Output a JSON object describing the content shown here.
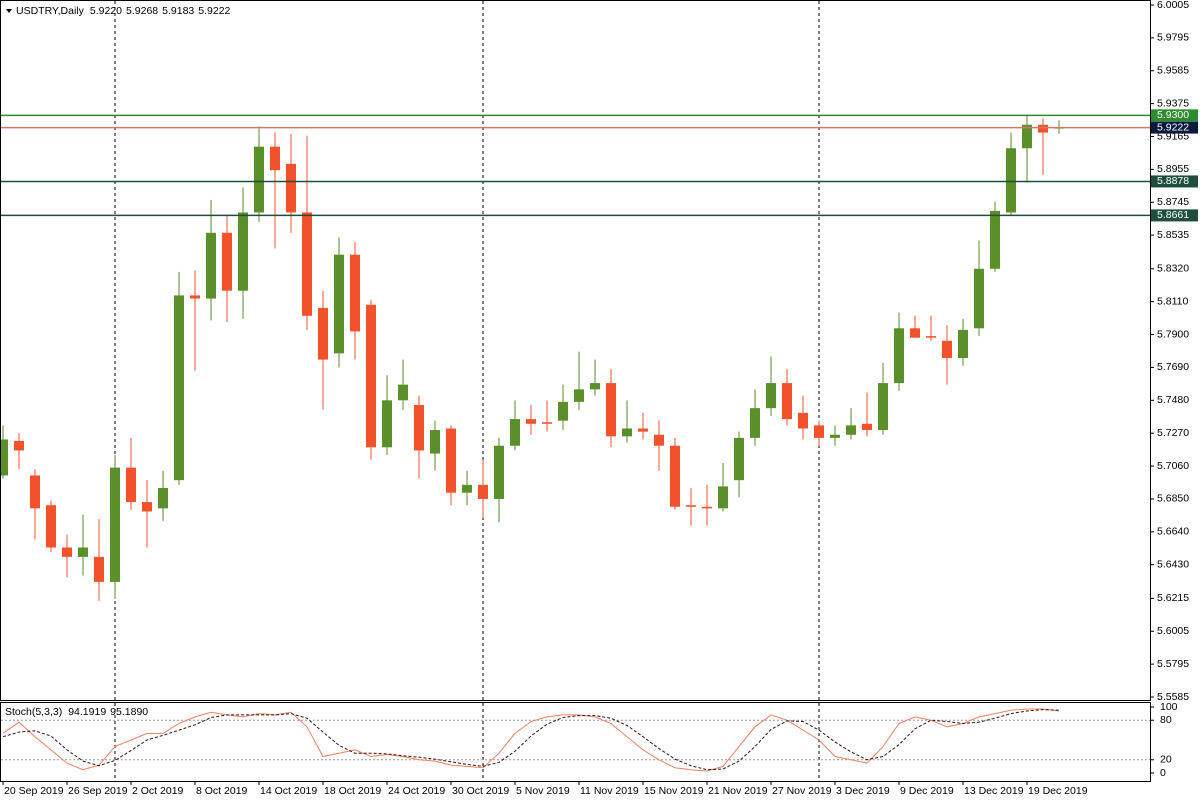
{
  "chart_data": [
    {
      "type": "candlestick",
      "title": "USDTRY,Daily",
      "ohlc_labels": [
        "5.9220",
        "5.9268",
        "5.9183",
        "5.9222"
      ],
      "categories": [
        "20 Sep 2019",
        null,
        null,
        null,
        "26 Sep 2019",
        null,
        null,
        null,
        "2 Oct 2019",
        null,
        null,
        null,
        "8 Oct 2019",
        null,
        null,
        null,
        "14 Oct 2019",
        null,
        null,
        null,
        "18 Oct 2019",
        null,
        null,
        null,
        "24 Oct 2019",
        null,
        null,
        null,
        "30 Oct 2019",
        null,
        null,
        null,
        "5 Nov 2019",
        null,
        null,
        null,
        "11 Nov 2019",
        null,
        null,
        null,
        "15 Nov 2019",
        null,
        null,
        null,
        "21 Nov 2019",
        null,
        null,
        null,
        "27 Nov 2019",
        null,
        null,
        null,
        "3 Dec 2019",
        null,
        null,
        null,
        "9 Dec 2019",
        null,
        null,
        null,
        "13 Dec 2019",
        null,
        null,
        null,
        "19 Dec 2019",
        null,
        null
      ],
      "open": [
        5.7,
        5.722,
        5.7,
        5.681,
        5.654,
        5.648,
        5.648,
        5.632,
        5.705,
        5.683,
        5.679,
        5.697,
        5.815,
        5.813,
        5.855,
        5.818,
        5.868,
        5.91,
        5.899,
        5.868,
        5.807,
        5.778,
        5.841,
        5.809,
        5.718,
        5.748,
        5.745,
        5.714,
        5.73,
        5.689,
        5.694,
        5.685,
        5.719,
        5.736,
        5.734,
        5.735,
        5.747,
        5.755,
        5.759,
        5.725,
        5.73,
        5.726,
        5.719,
        5.681,
        5.68,
        5.679,
        5.697,
        5.724,
        5.743,
        5.759,
        5.74,
        5.732,
        5.724,
        5.726,
        5.733,
        5.729,
        5.759,
        5.794,
        5.789,
        5.786,
        5.775,
        5.794,
        5.832,
        5.868,
        5.909,
        5.924,
        5.922
      ],
      "high": [
        5.732,
        5.727,
        5.704,
        5.684,
        5.662,
        5.675,
        5.672,
        5.713,
        5.724,
        5.697,
        5.703,
        5.83,
        5.831,
        5.876,
        5.866,
        5.884,
        5.923,
        5.919,
        5.918,
        5.917,
        5.818,
        5.852,
        5.849,
        5.812,
        5.764,
        5.774,
        5.751,
        5.735,
        5.732,
        5.703,
        5.71,
        5.724,
        5.748,
        5.745,
        5.748,
        5.758,
        5.779,
        5.774,
        5.768,
        5.748,
        5.74,
        5.735,
        5.724,
        5.692,
        5.694,
        5.708,
        5.728,
        5.755,
        5.776,
        5.768,
        5.751,
        5.735,
        5.732,
        5.743,
        5.753,
        5.772,
        5.804,
        5.802,
        5.802,
        5.796,
        5.8,
        5.85,
        5.875,
        5.919,
        5.93,
        5.928,
        5.9268
      ],
      "low": [
        5.698,
        5.704,
        5.659,
        5.651,
        5.635,
        5.636,
        5.62,
        5.621,
        5.678,
        5.654,
        5.671,
        5.694,
        5.767,
        5.799,
        5.798,
        5.8,
        5.862,
        5.845,
        5.855,
        5.793,
        5.742,
        5.769,
        5.774,
        5.71,
        5.713,
        5.742,
        5.698,
        5.703,
        5.681,
        5.681,
        5.673,
        5.67,
        5.716,
        5.726,
        5.728,
        5.729,
        5.742,
        5.751,
        5.718,
        5.721,
        5.723,
        5.703,
        5.678,
        5.668,
        5.668,
        5.677,
        5.686,
        5.719,
        5.738,
        5.732,
        5.723,
        5.719,
        5.719,
        5.723,
        5.725,
        5.726,
        5.754,
        5.788,
        5.786,
        5.758,
        5.77,
        5.789,
        5.83,
        5.866,
        5.887,
        5.892,
        5.9183
      ],
      "close": [
        5.723,
        5.716,
        5.679,
        5.654,
        5.648,
        5.654,
        5.632,
        5.705,
        5.683,
        5.677,
        5.692,
        5.815,
        5.813,
        5.855,
        5.818,
        5.868,
        5.91,
        5.895,
        5.868,
        5.802,
        5.774,
        5.841,
        5.792,
        5.718,
        5.748,
        5.758,
        5.716,
        5.729,
        5.689,
        5.694,
        5.685,
        5.719,
        5.736,
        5.733,
        5.733,
        5.747,
        5.755,
        5.759,
        5.725,
        5.73,
        5.728,
        5.719,
        5.68,
        5.68,
        5.679,
        5.693,
        5.724,
        5.743,
        5.759,
        5.736,
        5.73,
        5.724,
        5.726,
        5.732,
        5.729,
        5.759,
        5.794,
        5.788,
        5.788,
        5.775,
        5.793,
        5.832,
        5.869,
        5.909,
        5.924,
        5.919,
        5.9222
      ],
      "up_color": "#5a8f2a",
      "down_color": "#f2522b",
      "ylim": [
        5.5585,
        6.0005
      ],
      "yticks": [
        {
          "value": 6.0005,
          "label": "6.0005"
        },
        {
          "value": 5.9795,
          "label": "5.9795"
        },
        {
          "value": 5.9585,
          "label": "5.9585"
        },
        {
          "value": 5.9375,
          "label": "5.9375"
        },
        {
          "value": 5.9165,
          "label": "5.9165"
        },
        {
          "value": 5.8955,
          "label": "5.8955"
        },
        {
          "value": 5.8745,
          "label": "5.8745"
        },
        {
          "value": 5.8535,
          "label": "5.8535"
        },
        {
          "value": 5.832,
          "label": "5.8320"
        },
        {
          "value": 5.811,
          "label": "5.8110"
        },
        {
          "value": 5.79,
          "label": "5.7900"
        },
        {
          "value": 5.769,
          "label": "5.7690"
        },
        {
          "value": 5.748,
          "label": "5.7480"
        },
        {
          "value": 5.727,
          "label": "5.7270"
        },
        {
          "value": 5.706,
          "label": "5.7060"
        },
        {
          "value": 5.685,
          "label": "5.6850"
        },
        {
          "value": 5.664,
          "label": "5.6640"
        },
        {
          "value": 5.643,
          "label": "5.6430"
        },
        {
          "value": 5.6215,
          "label": "5.6215"
        },
        {
          "value": 5.6005,
          "label": "5.6005"
        },
        {
          "value": 5.5795,
          "label": "5.5795"
        },
        {
          "value": 5.5585,
          "label": "5.5585"
        }
      ],
      "levels": [
        {
          "value": 5.93,
          "label": "5.9300",
          "color": "#2e8b2e",
          "box": "#2e8b2e"
        },
        {
          "value": 5.9222,
          "label": "5.9222",
          "color": "#d07a6a",
          "box": "#0b1a3c"
        },
        {
          "value": 5.8878,
          "label": "5.8878",
          "color": "#1f4e3d",
          "box": "#1f4e3d"
        },
        {
          "value": 5.8661,
          "label": "5.8661",
          "color": "#1f4e3d",
          "box": "#1f4e3d"
        }
      ]
    },
    {
      "type": "line",
      "title": "Stoch(5,3,3)",
      "value_labels": [
        "94.1919",
        "95.1890"
      ],
      "series": [
        {
          "color": "#f08060",
          "dash": false,
          "values": [
            60,
            77,
            55,
            35,
            15,
            5,
            12,
            40,
            50,
            60,
            60,
            75,
            85,
            92,
            88,
            85,
            90,
            88,
            92,
            70,
            25,
            30,
            35,
            25,
            28,
            25,
            20,
            18,
            12,
            10,
            8,
            30,
            60,
            78,
            85,
            88,
            88,
            85,
            75,
            55,
            35,
            20,
            8,
            5,
            3,
            10,
            40,
            70,
            88,
            80,
            65,
            50,
            25,
            20,
            15,
            40,
            75,
            85,
            80,
            70,
            75,
            85,
            90,
            95,
            97,
            97,
            94.1919
          ]
        },
        {
          "color": "#3a1010",
          "dash": true,
          "values": [
            55,
            62,
            64,
            56,
            35,
            18,
            11,
            19,
            34,
            50,
            57,
            65,
            73,
            84,
            88,
            88,
            88,
            88,
            90,
            83,
            62,
            42,
            30,
            30,
            29,
            26,
            24,
            21,
            17,
            13,
            10,
            16,
            33,
            56,
            74,
            84,
            87,
            87,
            83,
            72,
            55,
            37,
            21,
            11,
            5,
            6,
            18,
            40,
            66,
            79,
            78,
            65,
            47,
            32,
            20,
            25,
            43,
            67,
            80,
            78,
            75,
            77,
            83,
            90,
            94,
            96,
            95.189
          ]
        }
      ],
      "ylim": [
        0,
        100
      ],
      "yticks": [
        0,
        20,
        80,
        100
      ]
    }
  ]
}
